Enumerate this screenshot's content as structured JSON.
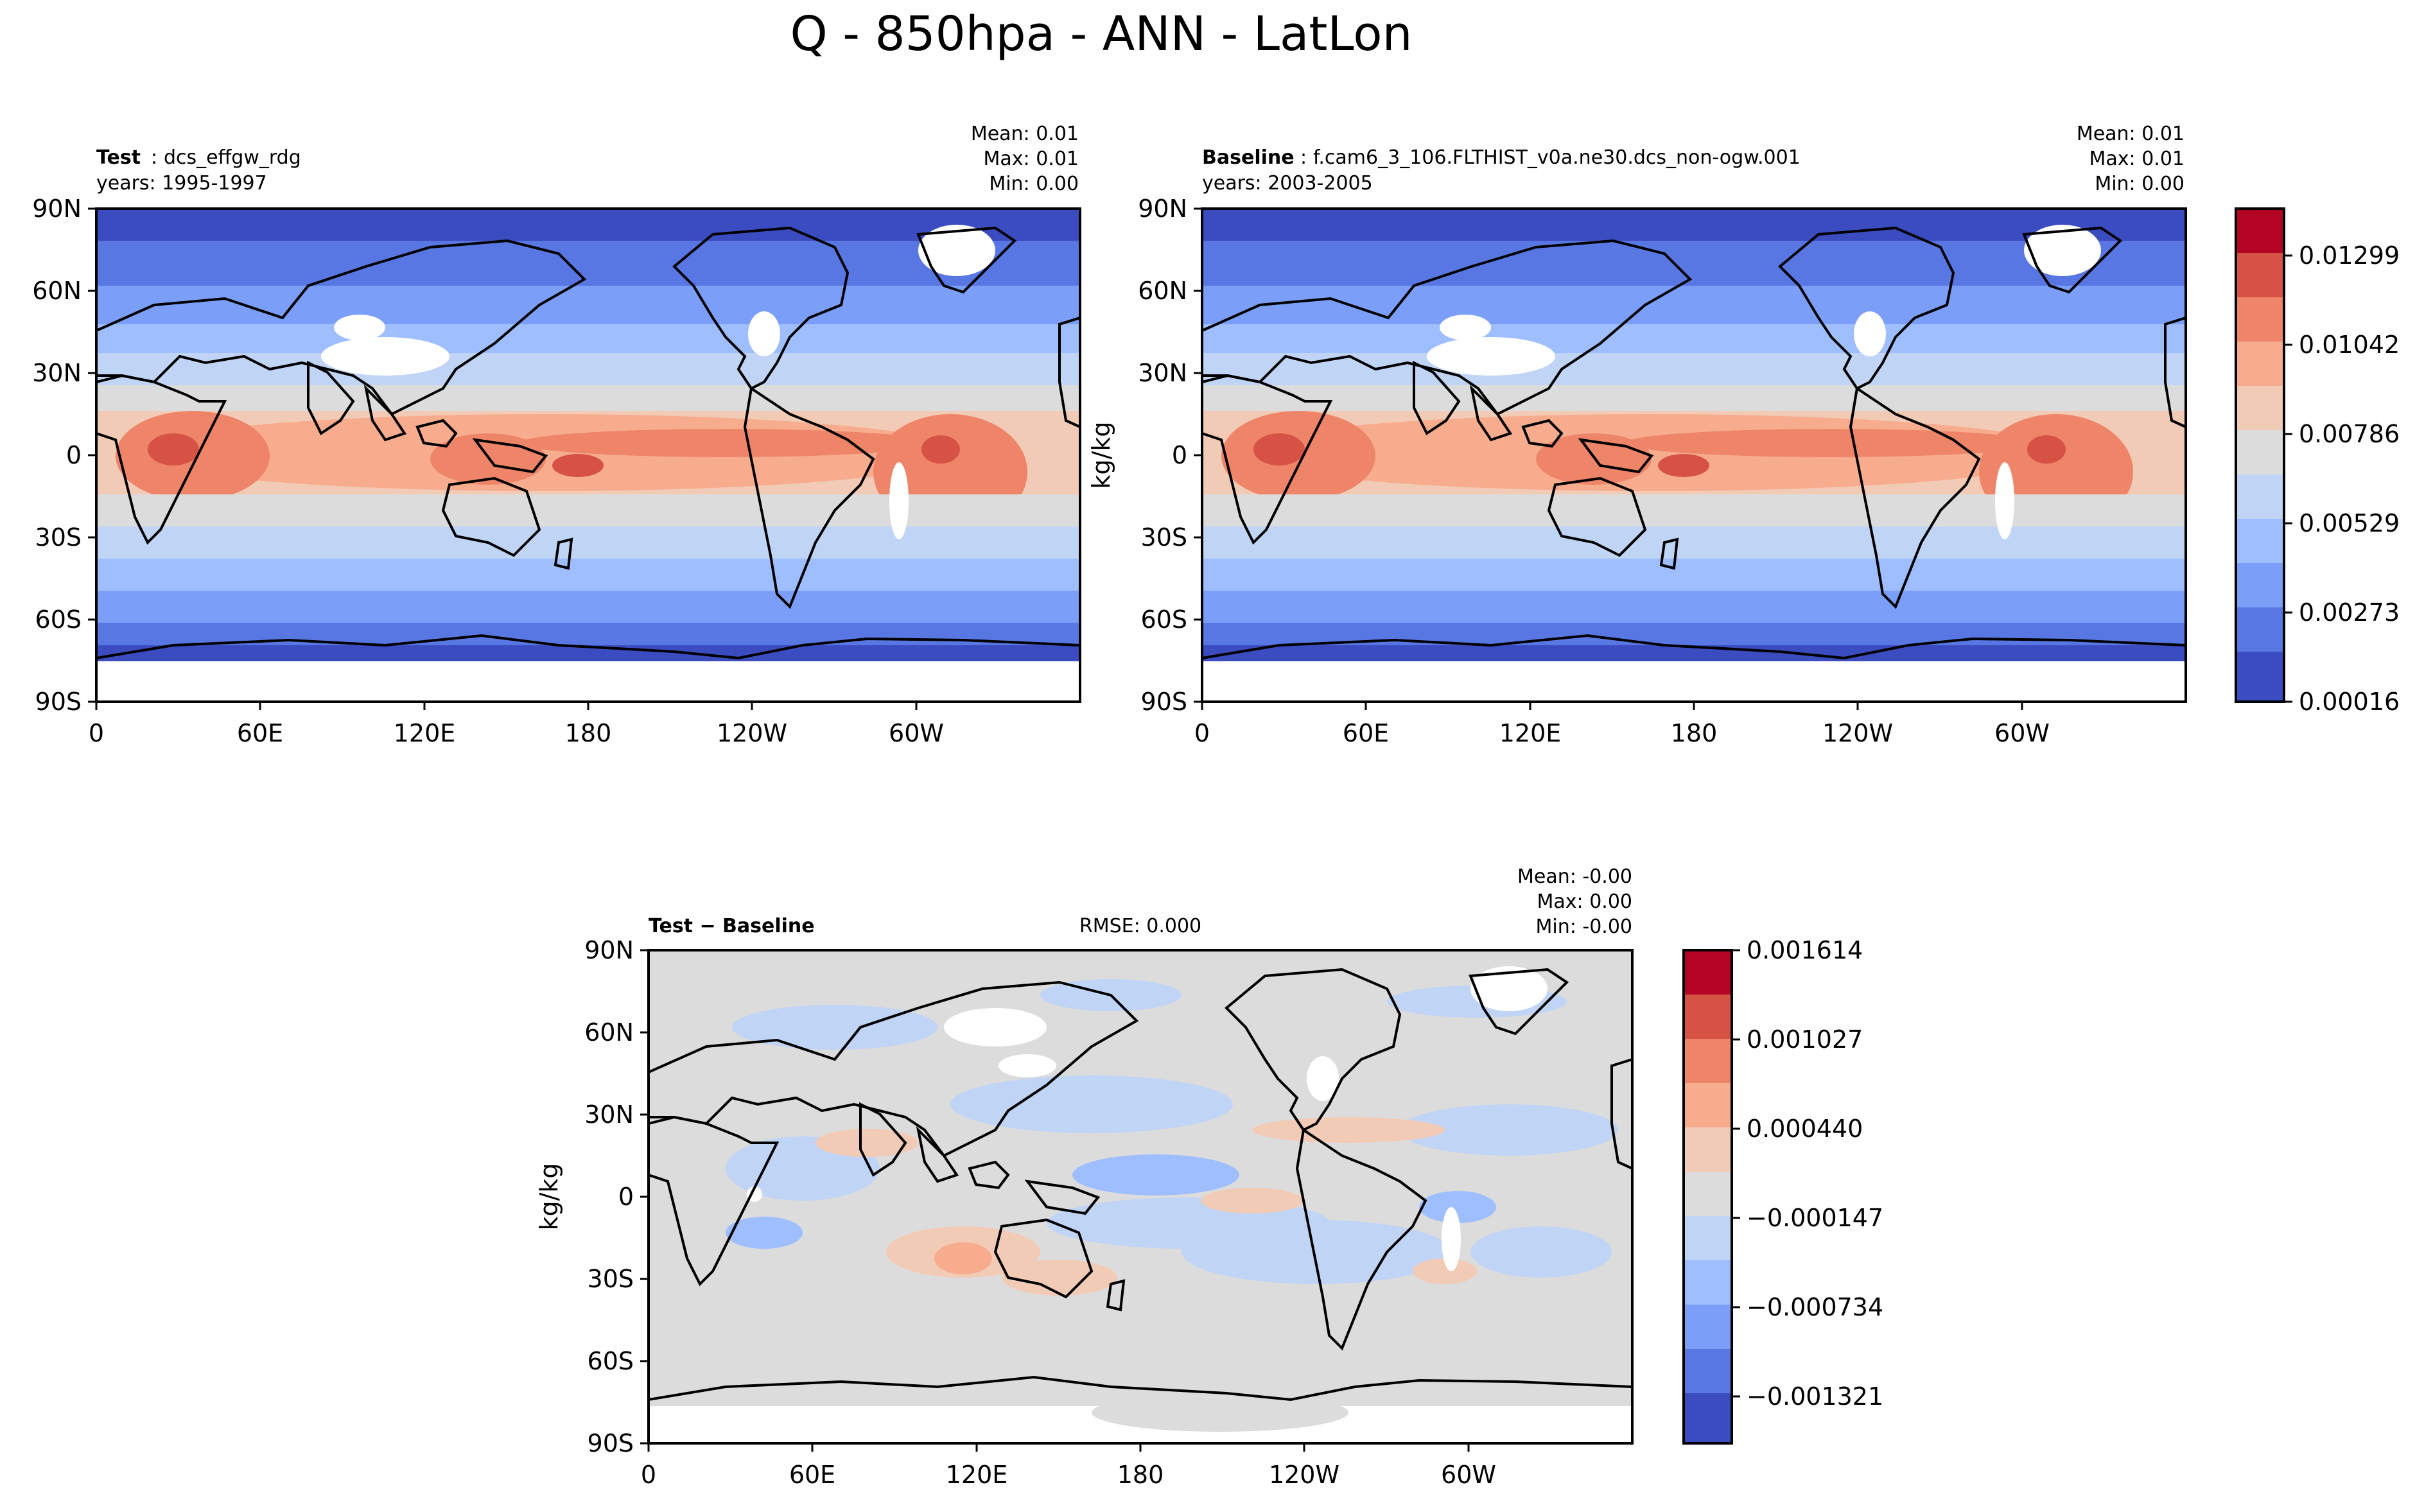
{
  "title": "Q - 850hpa - ANN - LatLon",
  "colors": {
    "white": "#ffffff",
    "seq": [
      "#3b4cc0",
      "#5977e3",
      "#7b9ff9",
      "#9ebeff",
      "#c0d4f5",
      "#dddcdc",
      "#f2cbb7",
      "#f7ac8e",
      "#ee8468",
      "#d65244",
      "#b40426"
    ],
    "land": "#000000"
  },
  "chart_data": [
    {
      "type": "heatmap",
      "panel": "test",
      "name_label": "Test",
      "name_sep": ": ",
      "name_value": "dcs_effgw_rdg",
      "years": "years: 1995-1997",
      "stats": [
        "Mean:  0.01",
        "Max:  0.01",
        "Min:  0.00"
      ],
      "ylabel": "",
      "xticks": [
        "0",
        "60E",
        "120E",
        "180",
        "120W",
        "60W"
      ],
      "yticks": [
        "90N",
        "60N",
        "30N",
        "0",
        "30S",
        "60S",
        "90S"
      ],
      "xlim": [
        0,
        360
      ],
      "ylim": [
        -90,
        90
      ]
    },
    {
      "type": "heatmap",
      "panel": "baseline",
      "name_label": "Baseline",
      "name_sep": ": ",
      "name_value": "f.cam6_3_106.FLTHIST_v0a.ne30.dcs_non-ogw.001",
      "years": "years: 2003-2005",
      "stats": [
        "Mean:  0.01",
        "Max:  0.01",
        "Min:  0.00"
      ],
      "ylabel": "kg/kg",
      "xticks": [
        "0",
        "60E",
        "120E",
        "180",
        "120W",
        "60W"
      ],
      "yticks": [
        "90N",
        "60N",
        "30N",
        "0",
        "30S",
        "60S",
        "90S"
      ],
      "xlim": [
        0,
        360
      ],
      "ylim": [
        -90,
        90
      ],
      "colorbar_ticks": [
        "0.01299",
        "0.01042",
        "0.00786",
        "0.00529",
        "0.00273",
        "0.00016"
      ]
    },
    {
      "type": "heatmap",
      "panel": "diff",
      "name_label": "Test − Baseline",
      "rmse": "RMSE: 0.000",
      "stats": [
        "Mean: -0.00",
        "Max:  0.00",
        "Min: -0.00"
      ],
      "ylabel": "kg/kg",
      "xticks": [
        "0",
        "60E",
        "120E",
        "180",
        "120W",
        "60W"
      ],
      "yticks": [
        "90N",
        "60N",
        "30N",
        "0",
        "30S",
        "60S",
        "90S"
      ],
      "xlim": [
        0,
        360
      ],
      "ylim": [
        -90,
        90
      ],
      "colorbar_ticks": [
        "0.001614",
        "0.001027",
        "0.000440",
        "−0.000147",
        "−0.000734",
        "−0.001321"
      ]
    }
  ]
}
